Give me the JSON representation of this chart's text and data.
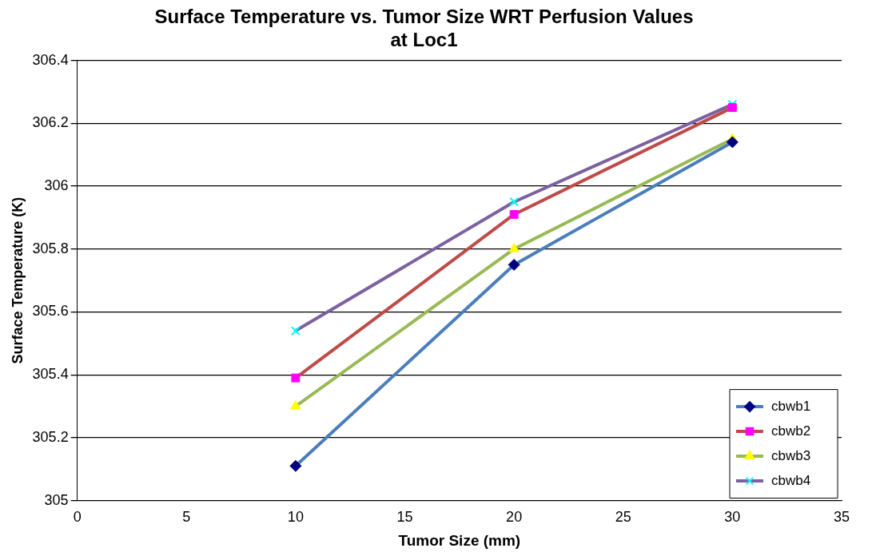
{
  "chart_data": {
    "type": "line",
    "title": "Surface Temperature vs. Tumor Size WRT Perfusion Values at Loc1",
    "xlabel": "Tumor Size (mm)",
    "ylabel": "Surface Temperature (K)",
    "x": [
      10,
      20,
      30
    ],
    "series": [
      {
        "name": "cbwb1",
        "color": "#4a7ebb",
        "colors": [
          "#000080",
          "#000080",
          "#000080"
        ],
        "marker": "diamond",
        "values": [
          305.11,
          305.75,
          306.14
        ]
      },
      {
        "name": "cbwb2",
        "color": "#be4b48",
        "colors": [
          "#ff00ff",
          "#ff00ff",
          "#ff00ff"
        ],
        "marker": "square",
        "values": [
          305.39,
          305.91,
          306.25
        ]
      },
      {
        "name": "cbwb3",
        "color": "#98b954",
        "colors": [
          "#ffff00",
          "#ffff00",
          "#ffff00"
        ],
        "marker": "triangle",
        "values": [
          305.3,
          305.8,
          306.15
        ]
      },
      {
        "name": "cbwb4",
        "color": "#7d60a0",
        "colors": [
          "#00ffff",
          "#00ffff",
          "#00ffff"
        ],
        "marker": "cross",
        "values": [
          305.54,
          305.95,
          306.26
        ]
      }
    ],
    "xlim": [
      0,
      35
    ],
    "xticks": [
      0,
      5,
      10,
      15,
      20,
      25,
      30,
      35
    ],
    "ylim": [
      305,
      306.4
    ],
    "yticks": [
      305,
      305.2,
      305.4,
      305.6,
      305.8,
      306,
      306.2,
      306.4
    ],
    "grid": "y",
    "legend": "bottom right",
    "line_style": "solid"
  }
}
